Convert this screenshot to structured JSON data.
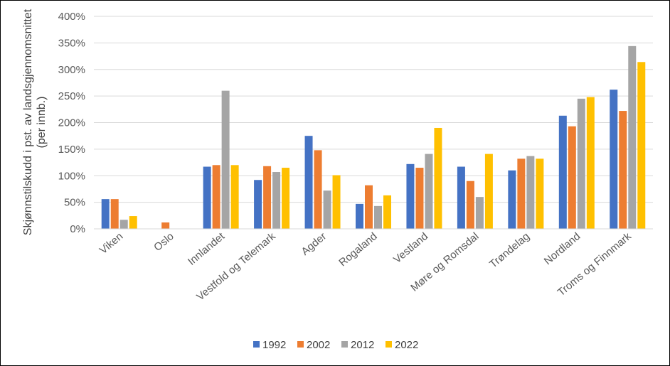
{
  "chart_data": {
    "type": "bar",
    "title": "",
    "xlabel": "",
    "ylabel": "Skjønnstilskudd i pst. av landsgjennomsnittet (per innb.)",
    "ylabel_lines": [
      "Skjønnstilskudd i pst. av landsgjennomsnittet",
      "(per innb.)"
    ],
    "ylim": [
      0,
      400
    ],
    "yticks": [
      0,
      50,
      100,
      150,
      200,
      250,
      300,
      350,
      400
    ],
    "ytick_suffix": "%",
    "grid": true,
    "legend_position": "bottom",
    "categories": [
      "Viken",
      "Oslo",
      "Innlandet",
      "Vestfold og Telemark",
      "Agder",
      "Rogaland",
      "Vestland",
      "Møre og Romsdal",
      "Trøndelag",
      "Nordland",
      "Troms og Finnmark"
    ],
    "series": [
      {
        "name": "1992",
        "color": "#4472C4",
        "values": [
          56,
          0,
          117,
          92,
          175,
          47,
          122,
          117,
          110,
          213,
          262
        ]
      },
      {
        "name": "2002",
        "color": "#ED7D31",
        "values": [
          56,
          12,
          120,
          118,
          148,
          82,
          115,
          90,
          132,
          193,
          222
        ]
      },
      {
        "name": "2012",
        "color": "#A5A5A5",
        "values": [
          17,
          0,
          260,
          107,
          72,
          43,
          141,
          60,
          137,
          245,
          344
        ]
      },
      {
        "name": "2022",
        "color": "#FFC000",
        "values": [
          24,
          0,
          120,
          115,
          101,
          63,
          190,
          141,
          132,
          248,
          314
        ]
      }
    ]
  }
}
